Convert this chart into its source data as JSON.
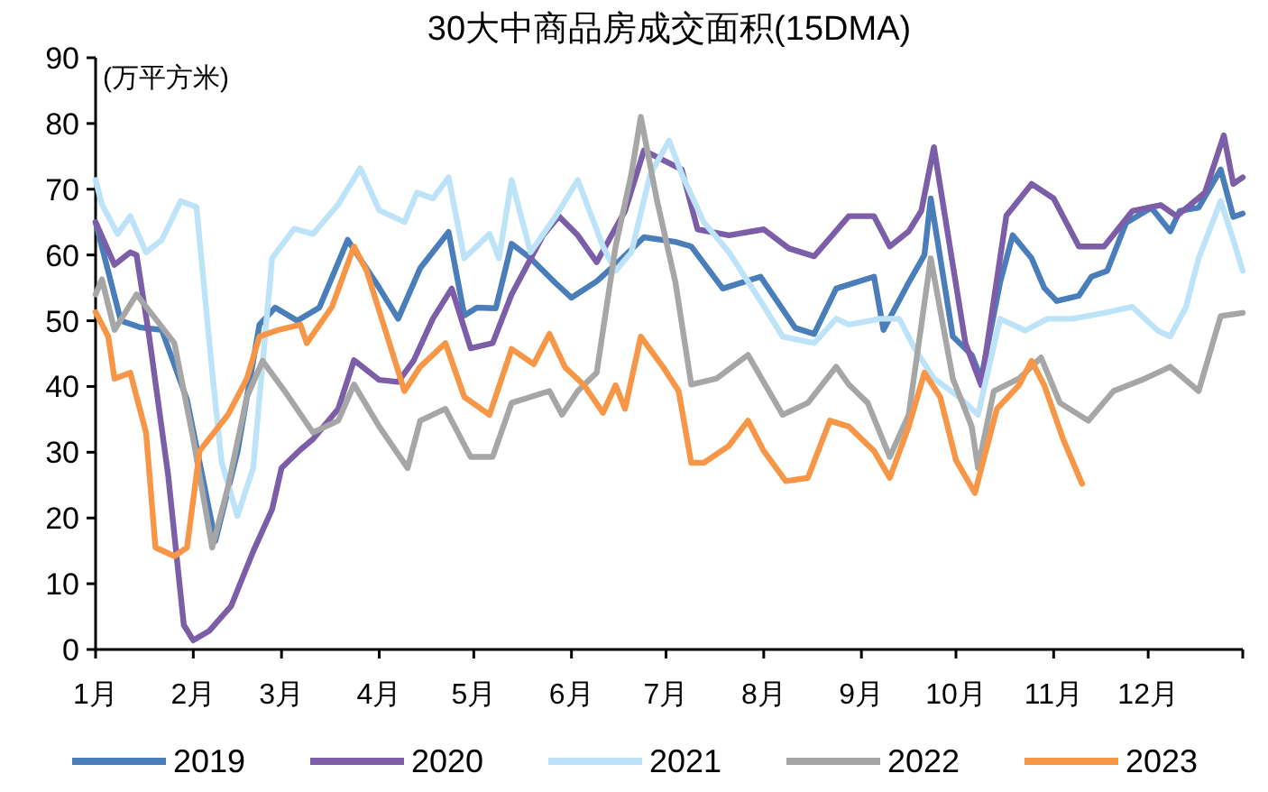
{
  "chart_data": {
    "type": "line",
    "title": "30大中商品房成交面积(15DMA)",
    "ylabel": "(万平方米)",
    "xlim": [
      "--01-01",
      "--12-31"
    ],
    "ylim": [
      0,
      90
    ],
    "yticks": [
      0,
      10,
      20,
      30,
      40,
      50,
      60,
      70,
      80,
      90
    ],
    "xticks": [
      {
        "value": "--01-01",
        "label": "1月"
      },
      {
        "value": "--02-01",
        "label": "2月"
      },
      {
        "value": "--03-01",
        "label": "3月"
      },
      {
        "value": "--04-01",
        "label": "4月"
      },
      {
        "value": "--05-01",
        "label": "5月"
      },
      {
        "value": "--06-01",
        "label": "6月"
      },
      {
        "value": "--07-01",
        "label": "7月"
      },
      {
        "value": "--08-01",
        "label": "8月"
      },
      {
        "value": "--09-01",
        "label": "9月"
      },
      {
        "value": "--10-01",
        "label": "10月"
      },
      {
        "value": "--11-01",
        "label": "11月"
      },
      {
        "value": "--12-01",
        "label": "12月"
      },
      {
        "value": "--12-31",
        "label": null
      }
    ],
    "legend": "bottom",
    "grid": false,
    "series": [
      {
        "name": "2019",
        "color": "#4a7ebb",
        "x": [
          "--01-01",
          "--01-09",
          "--01-15",
          "--01-22",
          "--01-30",
          "--02-08",
          "--02-15",
          "--02-22",
          "--02-27",
          "--03-06",
          "--03-13",
          "--03-22",
          "--04-01",
          "--04-07",
          "--04-14",
          "--04-23",
          "--04-28",
          "--05-02",
          "--05-08",
          "--05-13",
          "--05-19",
          "--05-27",
          "--06-01",
          "--06-09",
          "--06-16",
          "--06-24",
          "--07-04",
          "--07-09",
          "--07-19",
          "--07-31",
          "--08-11",
          "--08-17",
          "--08-24",
          "--09-05",
          "--09-08",
          "--09-16",
          "--09-21",
          "--09-23",
          "--09-30",
          "--10-06",
          "--10-09",
          "--10-15",
          "--10-19",
          "--10-25",
          "--10-29",
          "--11-02",
          "--11-09",
          "--11-13",
          "--11-18",
          "--11-24",
          "--12-02",
          "--12-08",
          "--12-11",
          "--12-17",
          "--12-24",
          "--12-28",
          "--12-31"
        ],
        "values": [
          65,
          50,
          49,
          48.6,
          38,
          16.5,
          30,
          49.4,
          52,
          50,
          52,
          62.3,
          55,
          50.3,
          58,
          63.5,
          50.8,
          52,
          51.9,
          61.7,
          59.5,
          55.7,
          53.5,
          56,
          59,
          62.7,
          62,
          61.3,
          54.9,
          56.7,
          48.9,
          48,
          54.9,
          56.7,
          48.6,
          55.8,
          60,
          68.6,
          47.6,
          44.8,
          41.2,
          55.8,
          63,
          59.5,
          55,
          53,
          53.8,
          56.7,
          57.6,
          64.9,
          67.2,
          63.6,
          66.7,
          67.2,
          73,
          65.8,
          66.3
        ]
      },
      {
        "name": "2020",
        "color": "#7b5ea7",
        "x": [
          "--01-01",
          "--01-07",
          "--01-12",
          "--01-14",
          "--01-18",
          "--01-24",
          "--01-29",
          "--02-01",
          "--02-06",
          "--02-13",
          "--02-20",
          "--02-26",
          "--03-01",
          "--03-07",
          "--03-11",
          "--03-19",
          "--03-24",
          "--04-01",
          "--04-07",
          "--04-12",
          "--04-18",
          "--04-24",
          "--04-30",
          "--05-07",
          "--05-13",
          "--05-23",
          "--05-28",
          "--06-03",
          "--06-09",
          "--06-18",
          "--06-24",
          "--07-06",
          "--07-11",
          "--07-21",
          "--08-01",
          "--08-09",
          "--08-17",
          "--08-28",
          "--09-05",
          "--09-10",
          "--09-16",
          "--09-20",
          "--09-24",
          "--09-30",
          "--10-04",
          "--10-09",
          "--10-17",
          "--10-25",
          "--11-01",
          "--11-09",
          "--11-17",
          "--11-26",
          "--12-05",
          "--12-10",
          "--12-19",
          "--12-25",
          "--12-28",
          "--12-31"
        ],
        "values": [
          65,
          58.5,
          60.4,
          60,
          47.6,
          26.6,
          3.7,
          1.4,
          2.8,
          6.6,
          14.9,
          21.3,
          27.6,
          30.4,
          32,
          36.6,
          44,
          41,
          40.7,
          44,
          50.3,
          54.9,
          45.8,
          46.6,
          54,
          63,
          65.9,
          63,
          58.9,
          66.7,
          75.9,
          73,
          63.9,
          63,
          63.9,
          61,
          59.8,
          65.9,
          65.9,
          61.3,
          63.6,
          66.7,
          76.4,
          58.5,
          46.6,
          40.2,
          66,
          70.8,
          68.6,
          61.3,
          61.3,
          66.7,
          67.6,
          65.9,
          69.5,
          78.2,
          70.8,
          71.8
        ]
      },
      {
        "name": "2021",
        "color": "#bde3f8",
        "x": [
          "--01-01",
          "--01-03",
          "--01-08",
          "--01-12",
          "--01-17",
          "--01-22",
          "--01-28",
          "--02-02",
          "--02-07",
          "--02-10",
          "--02-15",
          "--02-20",
          "--02-26",
          "--03-05",
          "--03-11",
          "--03-19",
          "--03-26",
          "--04-01",
          "--04-09",
          "--04-13",
          "--04-18",
          "--04-23",
          "--04-28",
          "--05-06",
          "--05-09",
          "--05-13",
          "--05-19",
          "--05-27",
          "--06-03",
          "--06-11",
          "--06-15",
          "--06-20",
          "--06-26",
          "--07-02",
          "--07-06",
          "--07-13",
          "--07-21",
          "--07-31",
          "--08-07",
          "--08-17",
          "--08-24",
          "--08-28",
          "--09-07",
          "--09-13",
          "--09-18",
          "--09-24",
          "--10-02",
          "--10-08",
          "--10-15",
          "--10-23",
          "--10-30",
          "--11-07",
          "--11-17",
          "--11-26",
          "--12-04",
          "--12-08",
          "--12-13",
          "--12-17",
          "--12-24",
          "--12-28",
          "--12-31"
        ],
        "values": [
          71.4,
          67.7,
          63.2,
          65.9,
          60.4,
          62.3,
          68.2,
          67.3,
          42.2,
          28.5,
          20.3,
          27.6,
          59.5,
          64,
          63.2,
          67.7,
          73.2,
          66.8,
          65,
          69.5,
          68.6,
          71.8,
          59.5,
          63.2,
          59.5,
          71.4,
          60.4,
          65.9,
          71.4,
          61.3,
          57.6,
          60.4,
          72.3,
          77.4,
          72.3,
          65,
          60.4,
          53,
          47.6,
          46.6,
          50.3,
          49.4,
          50.3,
          50.3,
          45.7,
          41.2,
          38.4,
          35.7,
          50.3,
          48.5,
          50.3,
          50.3,
          51.2,
          52.1,
          48.5,
          47.6,
          52.1,
          59.5,
          68.2,
          62.3,
          57.6
        ]
      },
      {
        "name": "2022",
        "color": "#a6a6a6",
        "x": [
          "--01-01",
          "--01-03",
          "--01-07",
          "--01-14",
          "--01-20",
          "--01-26",
          "--02-01",
          "--02-07",
          "--02-12",
          "--02-18",
          "--02-23",
          "--03-02",
          "--03-11",
          "--03-19",
          "--03-24",
          "--04-01",
          "--04-10",
          "--04-14",
          "--04-22",
          "--04-30",
          "--05-07",
          "--05-13",
          "--05-25",
          "--05-29",
          "--06-03",
          "--06-09",
          "--06-15",
          "--06-20",
          "--06-23",
          "--06-28",
          "--07-04",
          "--07-09",
          "--07-17",
          "--07-27",
          "--08-07",
          "--08-15",
          "--08-24",
          "--08-28",
          "--09-03",
          "--09-10",
          "--09-16",
          "--09-23",
          "--09-30",
          "--10-06",
          "--10-08",
          "--10-13",
          "--10-21",
          "--10-28",
          "--11-03",
          "--11-12",
          "--11-20",
          "--11-30",
          "--12-08",
          "--12-17",
          "--12-24",
          "--12-31"
        ],
        "values": [
          54,
          56.3,
          48.6,
          54,
          50.3,
          46.6,
          32,
          15.5,
          24.7,
          38.4,
          43.9,
          39.3,
          33,
          34.8,
          40.3,
          33.9,
          27.6,
          34.8,
          36.6,
          29.3,
          29.3,
          37.5,
          39.3,
          35.7,
          39.3,
          42.1,
          61.3,
          72.3,
          81,
          68.6,
          55.8,
          40.3,
          41.2,
          44.8,
          35.7,
          37.5,
          43,
          40.3,
          37.5,
          29.3,
          35.7,
          59.5,
          41.2,
          33.9,
          27.6,
          39.3,
          41.2,
          44.4,
          37.5,
          34.8,
          39.3,
          41.2,
          43,
          39.3,
          50.7,
          51.2
        ]
      },
      {
        "name": "2023",
        "color": "#f79646",
        "x": [
          "--01-01",
          "--01-05",
          "--01-07",
          "--01-12",
          "--01-17",
          "--01-20",
          "--01-26",
          "--01-30",
          "--02-03",
          "--02-12",
          "--02-18",
          "--02-22",
          "--02-28",
          "--03-07",
          "--03-09",
          "--03-17",
          "--03-24",
          "--03-28",
          "--04-09",
          "--04-14",
          "--04-22",
          "--04-28",
          "--05-06",
          "--05-13",
          "--05-20",
          "--05-25",
          "--05-30",
          "--06-05",
          "--06-11",
          "--06-15",
          "--06-18",
          "--06-23",
          "--06-30",
          "--07-05",
          "--07-09",
          "--07-13",
          "--07-21",
          "--07-27",
          "--08-01",
          "--08-08",
          "--08-15",
          "--08-22",
          "--08-28",
          "--09-05",
          "--09-10",
          "--09-16",
          "--09-21",
          "--09-26",
          "--10-01",
          "--10-07",
          "--10-14",
          "--10-21",
          "--10-25",
          "--10-29",
          "--11-04",
          "--11-10"
        ],
        "values": [
          51.3,
          47.6,
          41.2,
          42.1,
          33,
          15.5,
          14.2,
          15.5,
          30.2,
          35.7,
          41.2,
          47.6,
          48.6,
          49.4,
          46.6,
          52.1,
          61.3,
          57.6,
          39.3,
          43,
          46.6,
          38.4,
          35.7,
          45.7,
          43.4,
          48,
          42.9,
          40.2,
          36,
          40.2,
          36.6,
          47.6,
          43,
          39.3,
          28.4,
          28.4,
          31,
          34.8,
          30.2,
          25.6,
          26.1,
          34.8,
          33.9,
          30.2,
          26.1,
          33.9,
          42.1,
          38.4,
          28.8,
          23.8,
          36.6,
          40.2,
          43.9,
          40.2,
          32,
          25.2
        ]
      }
    ]
  }
}
